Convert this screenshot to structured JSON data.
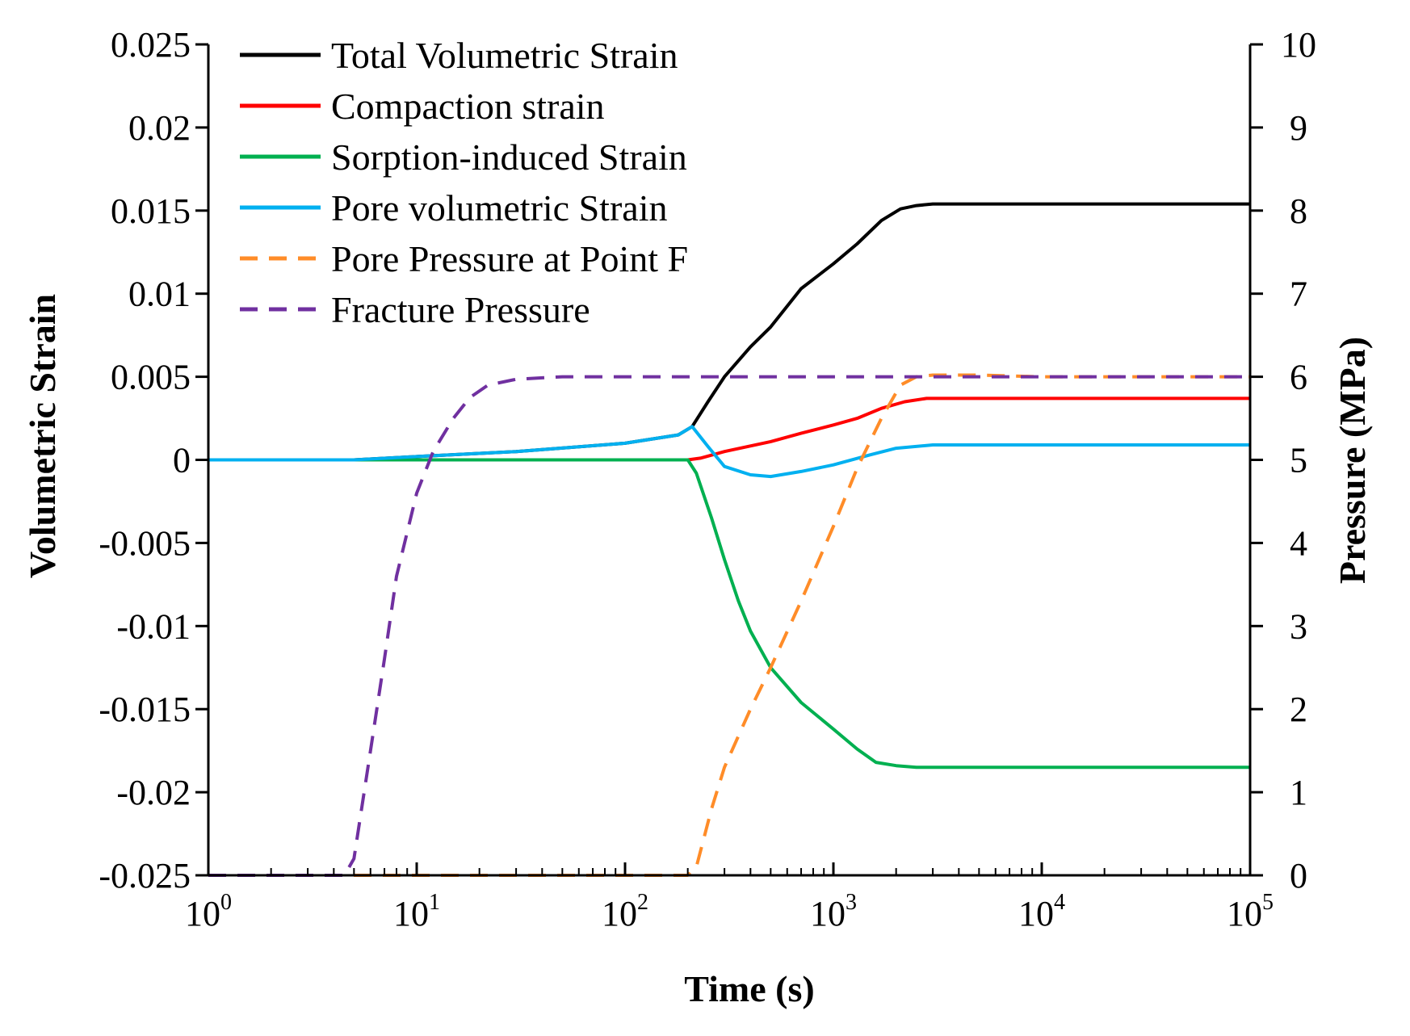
{
  "chart_data": {
    "type": "line",
    "title": "",
    "xlabel": "Time (s)",
    "ylabel": "Volumetric Strain",
    "y2label": "Pressure (MPa)",
    "xscale": "log",
    "xlim": [
      1,
      100000
    ],
    "ylim": [
      -0.025,
      0.025
    ],
    "y2lim": [
      0,
      10
    ],
    "grid": false,
    "legend_position": "top-left",
    "x_ticks": [
      {
        "value": 1,
        "base": "10",
        "exp": "0"
      },
      {
        "value": 10,
        "base": "10",
        "exp": "1"
      },
      {
        "value": 100,
        "base": "10",
        "exp": "2"
      },
      {
        "value": 1000,
        "base": "10",
        "exp": "3"
      },
      {
        "value": 10000,
        "base": "10",
        "exp": "4"
      },
      {
        "value": 100000,
        "base": "10",
        "exp": "5"
      }
    ],
    "y_ticks": [
      {
        "value": 0.025,
        "label": "0.025"
      },
      {
        "value": 0.02,
        "label": "0.02"
      },
      {
        "value": 0.015,
        "label": "0.015"
      },
      {
        "value": 0.01,
        "label": "0.01"
      },
      {
        "value": 0.005,
        "label": "0.005"
      },
      {
        "value": 0,
        "label": "0"
      },
      {
        "value": -0.005,
        "label": "-0.005"
      },
      {
        "value": -0.01,
        "label": "-0.01"
      },
      {
        "value": -0.015,
        "label": "-0.015"
      },
      {
        "value": -0.02,
        "label": "-0.02"
      },
      {
        "value": -0.025,
        "label": "-0.025"
      }
    ],
    "y2_ticks": [
      {
        "value": 10,
        "label": "10"
      },
      {
        "value": 9,
        "label": "9"
      },
      {
        "value": 8,
        "label": "8"
      },
      {
        "value": 7,
        "label": "7"
      },
      {
        "value": 6,
        "label": "6"
      },
      {
        "value": 5,
        "label": "5"
      },
      {
        "value": 4,
        "label": "4"
      },
      {
        "value": 3,
        "label": "3"
      },
      {
        "value": 2,
        "label": "2"
      },
      {
        "value": 1,
        "label": "1"
      },
      {
        "value": 0,
        "label": "0"
      }
    ],
    "series": [
      {
        "name": "Total Volumetric Strain",
        "color": "#000000",
        "dash": "solid",
        "axis": "left",
        "x": [
          1,
          5,
          10,
          30,
          100,
          180,
          210,
          250,
          300,
          400,
          500,
          700,
          1000,
          1300,
          1700,
          2100,
          2500,
          3000,
          5000,
          10000,
          100000
        ],
        "y": [
          0,
          0,
          0.0002,
          0.0005,
          0.001,
          0.0015,
          0.002,
          0.0035,
          0.005,
          0.0068,
          0.008,
          0.0103,
          0.0118,
          0.013,
          0.0144,
          0.0151,
          0.0153,
          0.0154,
          0.0154,
          0.0154,
          0.0154
        ]
      },
      {
        "name": "Compaction strain",
        "color": "#ff0000",
        "dash": "solid",
        "axis": "left",
        "x": [
          1,
          100,
          200,
          230,
          300,
          500,
          700,
          1000,
          1300,
          1700,
          2200,
          2800,
          5000,
          10000,
          100000
        ],
        "y": [
          0,
          0,
          0,
          0.0001,
          0.0005,
          0.0011,
          0.0016,
          0.0021,
          0.0025,
          0.0031,
          0.0035,
          0.0037,
          0.0037,
          0.0037,
          0.0037
        ]
      },
      {
        "name": "Sorption-induced  Strain",
        "color": "#00b050",
        "dash": "solid",
        "axis": "left",
        "x": [
          1,
          100,
          200,
          220,
          260,
          300,
          350,
          400,
          500,
          700,
          1000,
          1300,
          1600,
          2000,
          2500,
          3000,
          5000,
          10000,
          100000
        ],
        "y": [
          0,
          0,
          0,
          -0.0008,
          -0.0035,
          -0.006,
          -0.0085,
          -0.0103,
          -0.0125,
          -0.0146,
          -0.0162,
          -0.0174,
          -0.0182,
          -0.0184,
          -0.0185,
          -0.0185,
          -0.0185,
          -0.0185,
          -0.0185
        ]
      },
      {
        "name": "Pore volumetric Strain",
        "color": "#00b0f0",
        "dash": "solid",
        "axis": "left",
        "x": [
          1,
          5,
          10,
          30,
          100,
          180,
          210,
          250,
          300,
          400,
          500,
          700,
          1000,
          1500,
          2000,
          3000,
          5000,
          10000,
          100000
        ],
        "y": [
          0,
          0,
          0.0002,
          0.0005,
          0.001,
          0.0015,
          0.002,
          0.0008,
          -0.0004,
          -0.0009,
          -0.001,
          -0.0007,
          -0.0003,
          0.0003,
          0.0007,
          0.0009,
          0.0009,
          0.0009,
          0.0009
        ]
      },
      {
        "name": "Pore Pressure at Point F",
        "color": "#ff8c28",
        "dash": "dashed",
        "axis": "right",
        "x": [
          1,
          100,
          200,
          220,
          260,
          300,
          400,
          500,
          700,
          1000,
          1300,
          1700,
          2100,
          2500,
          3000,
          5000,
          10000,
          100000
        ],
        "y": [
          0,
          0,
          0,
          0.1,
          0.8,
          1.3,
          2.0,
          2.5,
          3.3,
          4.2,
          4.9,
          5.5,
          5.9,
          6.0,
          6.02,
          6.02,
          6.0,
          6.0
        ]
      },
      {
        "name": "Fracture Pressure",
        "color": "#7030a0",
        "dash": "dashed",
        "axis": "right",
        "x": [
          1,
          4.5,
          5,
          6,
          7,
          8,
          10,
          12,
          15,
          18,
          22,
          30,
          50,
          100,
          100000
        ],
        "y": [
          0,
          0,
          0.2,
          1.5,
          2.6,
          3.6,
          4.6,
          5.1,
          5.5,
          5.75,
          5.9,
          5.97,
          6.0,
          6.0,
          6.0
        ]
      }
    ]
  }
}
